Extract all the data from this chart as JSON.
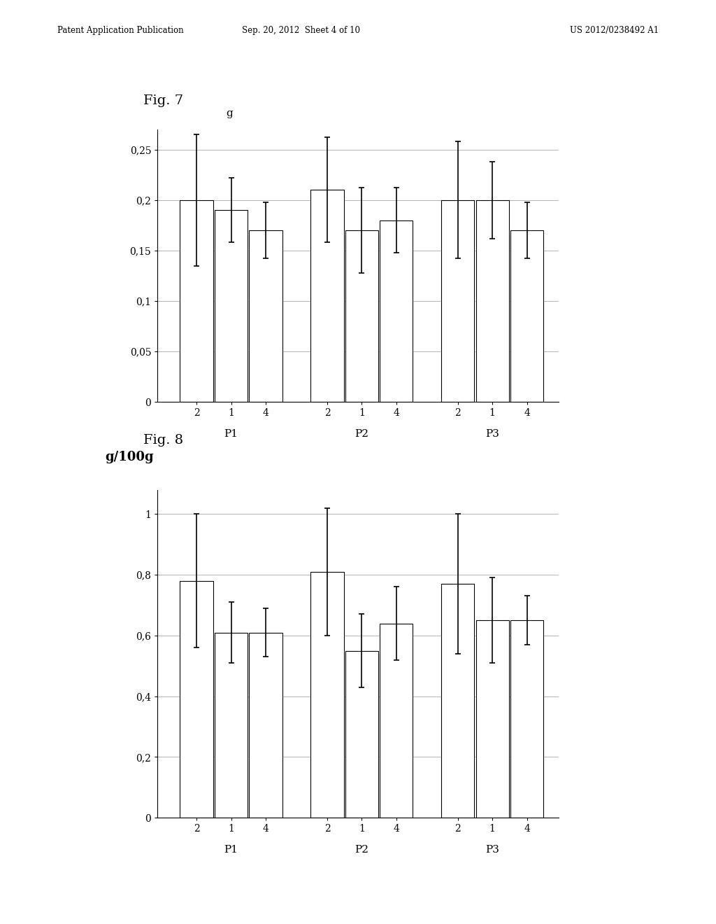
{
  "fig7": {
    "title": "Fig. 7",
    "ylabel": "g",
    "ylim": [
      0,
      0.27
    ],
    "yticks": [
      0,
      0.05,
      0.1,
      0.15,
      0.2,
      0.25
    ],
    "ytick_labels": [
      "0",
      "0,05",
      "0,1",
      "0,15",
      "0,2",
      "0,25"
    ],
    "groups": [
      "P1",
      "P2",
      "P3"
    ],
    "bar_labels": [
      "2",
      "1",
      "4"
    ],
    "bar_values": [
      [
        0.2,
        0.19,
        0.17
      ],
      [
        0.21,
        0.17,
        0.18
      ],
      [
        0.2,
        0.2,
        0.17
      ]
    ],
    "error_bars": [
      [
        0.065,
        0.032,
        0.028
      ],
      [
        0.052,
        0.042,
        0.032
      ],
      [
        0.058,
        0.038,
        0.028
      ]
    ],
    "bar_color": "#ffffff",
    "bar_edgecolor": "#000000",
    "errorbar_color": "#000000"
  },
  "fig8": {
    "title": "Fig. 8",
    "ylabel": "g/100g",
    "ylim": [
      0,
      1.08
    ],
    "yticks": [
      0,
      0.2,
      0.4,
      0.6,
      0.8,
      1.0
    ],
    "ytick_labels": [
      "0",
      "0,2",
      "0,4",
      "0,6",
      "0,8",
      "1"
    ],
    "groups": [
      "P1",
      "P2",
      "P3"
    ],
    "bar_labels": [
      "2",
      "1",
      "4"
    ],
    "bar_values": [
      [
        0.78,
        0.61,
        0.61
      ],
      [
        0.81,
        0.55,
        0.64
      ],
      [
        0.77,
        0.65,
        0.65
      ]
    ],
    "error_bars": [
      [
        0.22,
        0.1,
        0.08
      ],
      [
        0.21,
        0.12,
        0.12
      ],
      [
        0.23,
        0.14,
        0.08
      ]
    ],
    "bar_color": "#ffffff",
    "bar_edgecolor": "#000000",
    "errorbar_color": "#000000"
  },
  "header_left": "Patent Application Publication",
  "header_mid": "Sep. 20, 2012  Sheet 4 of 10",
  "header_right": "US 2012/0238492 A1",
  "background_color": "#ffffff",
  "text_color": "#000000"
}
